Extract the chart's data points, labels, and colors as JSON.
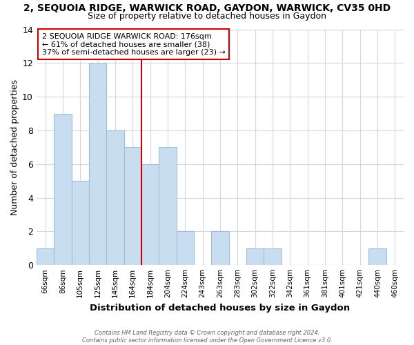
{
  "title1": "2, SEQUOIA RIDGE, WARWICK ROAD, GAYDON, WARWICK, CV35 0HD",
  "title2": "Size of property relative to detached houses in Gaydon",
  "xlabel": "Distribution of detached houses by size in Gaydon",
  "ylabel": "Number of detached properties",
  "categories": [
    "66sqm",
    "86sqm",
    "105sqm",
    "125sqm",
    "145sqm",
    "164sqm",
    "184sqm",
    "204sqm",
    "224sqm",
    "243sqm",
    "263sqm",
    "283sqm",
    "302sqm",
    "322sqm",
    "342sqm",
    "361sqm",
    "381sqm",
    "401sqm",
    "421sqm",
    "440sqm",
    "460sqm"
  ],
  "values": [
    1,
    9,
    5,
    12,
    8,
    7,
    6,
    7,
    2,
    0,
    2,
    0,
    1,
    1,
    0,
    0,
    0,
    0,
    0,
    1,
    0
  ],
  "bar_color": "#c9ddf0",
  "bar_edge_color": "#a0bcd8",
  "red_line_index": 6.5,
  "ylim": [
    0,
    14
  ],
  "yticks": [
    0,
    2,
    4,
    6,
    8,
    10,
    12,
    14
  ],
  "annotation_line1": "2 SEQUOIA RIDGE WARWICK ROAD: 176sqm",
  "annotation_line2": "← 61% of detached houses are smaller (38)",
  "annotation_line3": "37% of semi-detached houses are larger (23) →",
  "annotation_box_color": "#cc0000",
  "footnote_line1": "Contains HM Land Registry data © Crown copyright and database right 2024.",
  "footnote_line2": "Contains public sector information licensed under the Open Government Licence v3.0.",
  "background_color": "#ffffff",
  "grid_color": "#d0d8e8"
}
